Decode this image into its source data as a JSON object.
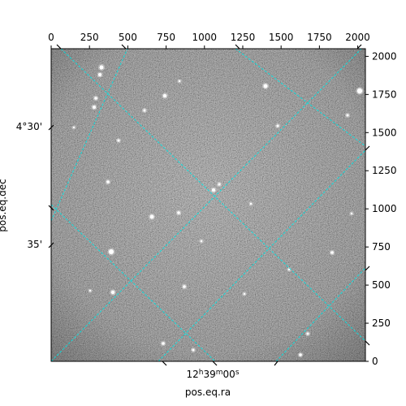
{
  "chart_data": {
    "type": "image",
    "xlabel": "pos.eq.ra",
    "ylabel": "pos.eq.dec",
    "xlim": [
      0,
      2050
    ],
    "ylim": [
      0,
      2050
    ],
    "x_ticks": [
      0,
      250,
      500,
      750,
      1000,
      1250,
      1500,
      1750,
      2000
    ],
    "y_ticks": [
      0,
      250,
      500,
      750,
      1000,
      1250,
      1500,
      1750,
      2000
    ],
    "x_tick_labels": [
      "0",
      "250",
      "500",
      "750",
      "1000",
      "1250",
      "1500",
      "1750",
      "2000"
    ],
    "y_tick_labels": [
      "0",
      "250",
      "500",
      "750",
      "1000",
      "1250",
      "1500",
      "1750",
      "2000"
    ],
    "dec_tick_labels": [
      "4°30'",
      "35'"
    ],
    "ra_tick_label": "12h39m00s",
    "grid_color": "#00e5e5",
    "grid": true,
    "image_style": "grayscale noise star field"
  }
}
